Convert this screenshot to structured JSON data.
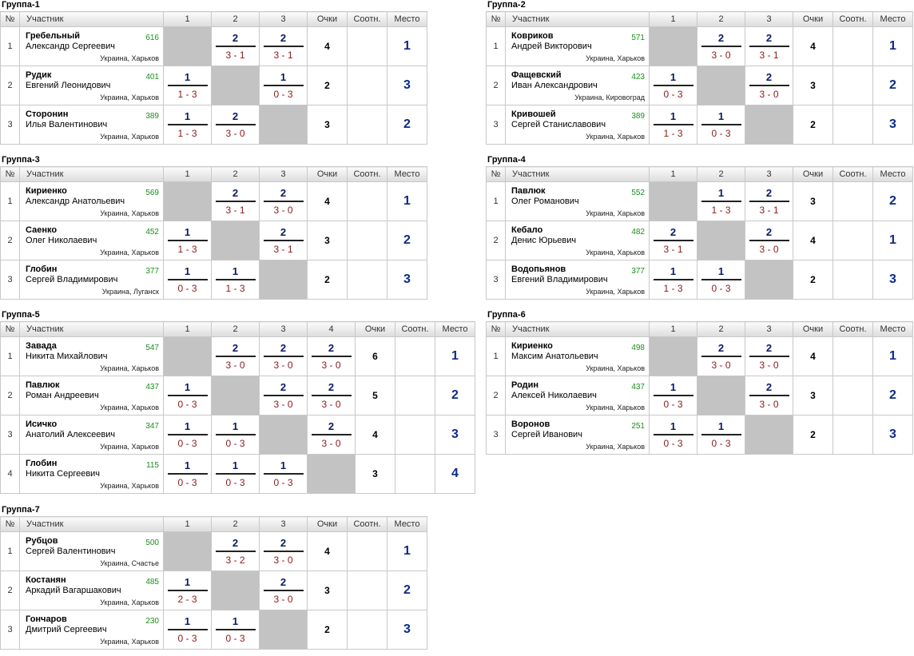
{
  "headers": {
    "num": "№",
    "participant": "Участник",
    "points": "Очки",
    "ratio": "Соотн.",
    "place": "Место"
  },
  "groups": [
    {
      "title": "Группа-1",
      "cols": [
        "1",
        "2",
        "3"
      ],
      "players": [
        {
          "n": "1",
          "surname": "Гребельный",
          "given": "Александр Сергеевич",
          "rating": "616",
          "loc": "Украина, Харьков",
          "res": [
            null,
            [
              "2",
              "3 - 1"
            ],
            [
              "2",
              "3 - 1"
            ]
          ],
          "points": "4",
          "ratio": "",
          "place": "1"
        },
        {
          "n": "2",
          "surname": "Рудик",
          "given": "Евгений Леонидович",
          "rating": "401",
          "loc": "Украина, Харьков",
          "res": [
            [
              "1",
              "1 - 3"
            ],
            null,
            [
              "1",
              "0 - 3"
            ]
          ],
          "points": "2",
          "ratio": "",
          "place": "3"
        },
        {
          "n": "3",
          "surname": "Сторонин",
          "given": "Илья Валентинович",
          "rating": "389",
          "loc": "Украина, Харьков",
          "res": [
            [
              "1",
              "1 - 3"
            ],
            [
              "2",
              "3 - 0"
            ],
            null
          ],
          "points": "3",
          "ratio": "",
          "place": "2"
        }
      ]
    },
    {
      "title": "Группа-2",
      "cols": [
        "1",
        "2",
        "3"
      ],
      "players": [
        {
          "n": "1",
          "surname": "Ковриков",
          "given": "Андрей Викторович",
          "rating": "571",
          "loc": "Украина, Харьков",
          "res": [
            null,
            [
              "2",
              "3 - 0"
            ],
            [
              "2",
              "3 - 1"
            ]
          ],
          "points": "4",
          "ratio": "",
          "place": "1"
        },
        {
          "n": "2",
          "surname": "Фащевский",
          "given": "Иван Александрович",
          "rating": "423",
          "loc": "Украина, Кировоград",
          "res": [
            [
              "1",
              "0 - 3"
            ],
            null,
            [
              "2",
              "3 - 0"
            ]
          ],
          "points": "3",
          "ratio": "",
          "place": "2"
        },
        {
          "n": "3",
          "surname": "Кривошей",
          "given": "Сергей Станиславович",
          "rating": "389",
          "loc": "Украина, Харьков",
          "res": [
            [
              "1",
              "1 - 3"
            ],
            [
              "1",
              "0 - 3"
            ],
            null
          ],
          "points": "2",
          "ratio": "",
          "place": "3"
        }
      ]
    },
    {
      "title": "Группа-3",
      "cols": [
        "1",
        "2",
        "3"
      ],
      "players": [
        {
          "n": "1",
          "surname": "Кириенко",
          "given": "Александр Анатольевич",
          "rating": "569",
          "loc": "Украина, Харьков",
          "res": [
            null,
            [
              "2",
              "3 - 1"
            ],
            [
              "2",
              "3 - 0"
            ]
          ],
          "points": "4",
          "ratio": "",
          "place": "1"
        },
        {
          "n": "2",
          "surname": "Саенко",
          "given": "Олег Николаевич",
          "rating": "452",
          "loc": "Украина, Харьков",
          "res": [
            [
              "1",
              "1 - 3"
            ],
            null,
            [
              "2",
              "3 - 1"
            ]
          ],
          "points": "3",
          "ratio": "",
          "place": "2"
        },
        {
          "n": "3",
          "surname": "Глобин",
          "given": "Сергей Владимирович",
          "rating": "377",
          "loc": "Украина, Луганск",
          "res": [
            [
              "1",
              "0 - 3"
            ],
            [
              "1",
              "1 - 3"
            ],
            null
          ],
          "points": "2",
          "ratio": "",
          "place": "3"
        }
      ]
    },
    {
      "title": "Группа-4",
      "cols": [
        "1",
        "2",
        "3"
      ],
      "players": [
        {
          "n": "1",
          "surname": "Павлюк",
          "given": "Олег Романович",
          "rating": "552",
          "loc": "Украина, Харьков",
          "res": [
            null,
            [
              "1",
              "1 - 3"
            ],
            [
              "2",
              "3 - 1"
            ]
          ],
          "points": "3",
          "ratio": "",
          "place": "2"
        },
        {
          "n": "2",
          "surname": "Кебало",
          "given": "Денис Юрьевич",
          "rating": "482",
          "loc": "Украина, Харьков",
          "res": [
            [
              "2",
              "3 - 1"
            ],
            null,
            [
              "2",
              "3 - 0"
            ]
          ],
          "points": "4",
          "ratio": "",
          "place": "1"
        },
        {
          "n": "3",
          "surname": "Водопьянов",
          "given": "Евгений Владимирович",
          "rating": "377",
          "loc": "Украина, Харьков",
          "res": [
            [
              "1",
              "1 - 3"
            ],
            [
              "1",
              "0 - 3"
            ],
            null
          ],
          "points": "2",
          "ratio": "",
          "place": "3"
        }
      ]
    },
    {
      "title": "Группа-5",
      "cols": [
        "1",
        "2",
        "3",
        "4"
      ],
      "players": [
        {
          "n": "1",
          "surname": "Завада",
          "given": "Никита Михайлович",
          "rating": "547",
          "loc": "Украина, Харьков",
          "res": [
            null,
            [
              "2",
              "3 - 0"
            ],
            [
              "2",
              "3 - 0"
            ],
            [
              "2",
              "3 - 0"
            ]
          ],
          "points": "6",
          "ratio": "",
          "place": "1"
        },
        {
          "n": "2",
          "surname": "Павлюк",
          "given": "Роман Андреевич",
          "rating": "437",
          "loc": "Украина, Харьков",
          "res": [
            [
              "1",
              "0 - 3"
            ],
            null,
            [
              "2",
              "3 - 0"
            ],
            [
              "2",
              "3 - 0"
            ]
          ],
          "points": "5",
          "ratio": "",
          "place": "2"
        },
        {
          "n": "3",
          "surname": "Исичко",
          "given": "Анатолий Алексеевич",
          "rating": "347",
          "loc": "Украина, Харьков",
          "res": [
            [
              "1",
              "0 - 3"
            ],
            [
              "1",
              "0 - 3"
            ],
            null,
            [
              "2",
              "3 - 0"
            ]
          ],
          "points": "4",
          "ratio": "",
          "place": "3"
        },
        {
          "n": "4",
          "surname": "Глобин",
          "given": "Никита Сергеевич",
          "rating": "115",
          "loc": "Украина, Харьков",
          "res": [
            [
              "1",
              "0 - 3"
            ],
            [
              "1",
              "0 - 3"
            ],
            [
              "1",
              "0 - 3"
            ],
            null
          ],
          "points": "3",
          "ratio": "",
          "place": "4"
        }
      ]
    },
    {
      "title": "Группа-6",
      "cols": [
        "1",
        "2",
        "3"
      ],
      "players": [
        {
          "n": "1",
          "surname": "Кириенко",
          "given": "Максим Анатольевич",
          "rating": "498",
          "loc": "Украина, Харьков",
          "res": [
            null,
            [
              "2",
              "3 - 0"
            ],
            [
              "2",
              "3 - 0"
            ]
          ],
          "points": "4",
          "ratio": "",
          "place": "1"
        },
        {
          "n": "2",
          "surname": "Родин",
          "given": "Алексей Николаевич",
          "rating": "437",
          "loc": "Украина, Харьков",
          "res": [
            [
              "1",
              "0 - 3"
            ],
            null,
            [
              "2",
              "3 - 0"
            ]
          ],
          "points": "3",
          "ratio": "",
          "place": "2"
        },
        {
          "n": "3",
          "surname": "Воронов",
          "given": "Сергей Иванович",
          "rating": "251",
          "loc": "Украина, Харьков",
          "res": [
            [
              "1",
              "0 - 3"
            ],
            [
              "1",
              "0 - 3"
            ],
            null
          ],
          "points": "2",
          "ratio": "",
          "place": "3"
        }
      ]
    },
    {
      "title": "Группа-7",
      "cols": [
        "1",
        "2",
        "3"
      ],
      "players": [
        {
          "n": "1",
          "surname": "Рубцов",
          "given": "Сергей Валентинович",
          "rating": "500",
          "loc": "Украина, Счастье",
          "res": [
            null,
            [
              "2",
              "3 - 2"
            ],
            [
              "2",
              "3 - 0"
            ]
          ],
          "points": "4",
          "ratio": "",
          "place": "1"
        },
        {
          "n": "2",
          "surname": "Костанян",
          "given": "Аркадий Вагаршакович",
          "rating": "485",
          "loc": "Украина, Харьков",
          "res": [
            [
              "1",
              "2 - 3"
            ],
            null,
            [
              "2",
              "3 - 0"
            ]
          ],
          "points": "3",
          "ratio": "",
          "place": "2"
        },
        {
          "n": "3",
          "surname": "Гончаров",
          "given": "Дмитрий Сергеевич",
          "rating": "230",
          "loc": "Украина, Харьков",
          "res": [
            [
              "1",
              "0 - 3"
            ],
            [
              "1",
              "0 - 3"
            ],
            null
          ],
          "points": "2",
          "ratio": "",
          "place": "3"
        }
      ]
    }
  ]
}
